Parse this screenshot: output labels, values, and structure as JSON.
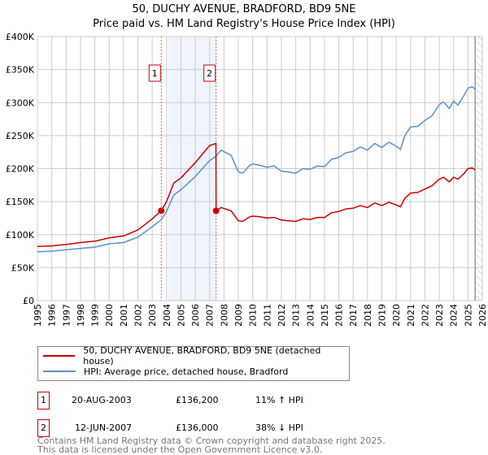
{
  "title": "50, DUCHY AVENUE, BRADFORD, BD9 5NE",
  "subtitle": "Price paid vs. HM Land Registry's House Price Index (HPI)",
  "legend": {
    "property": "50, DUCHY AVENUE, BRADFORD, BD9 5NE (detached house)",
    "hpi": "HPI: Average price, detached house, Bradford"
  },
  "transactions": [
    {
      "num": "1",
      "date": "20-AUG-2003",
      "price": "£136,200",
      "hpi": "11% ↑ HPI"
    },
    {
      "num": "2",
      "date": "12-JUN-2007",
      "price": "£136,000",
      "hpi": "38% ↓ HPI"
    }
  ],
  "footer": [
    "Contains HM Land Registry data © Crown copyright and database right 2025.",
    "This data is licensed under the Open Government Licence v3.0."
  ],
  "colors": {
    "property": "#cc0000",
    "hpi": "#5b8fd4",
    "shade": "#eef3fc"
  },
  "chart_data": {
    "type": "line",
    "title": "50, DUCHY AVENUE, BRADFORD, BD9 5NE",
    "xlim": [
      1995,
      2026
    ],
    "ylim": [
      0,
      400000
    ],
    "xticks": [
      1995,
      1996,
      1997,
      1998,
      1999,
      2000,
      2001,
      2002,
      2003,
      2004,
      2005,
      2006,
      2007,
      2008,
      2009,
      2010,
      2011,
      2012,
      2013,
      2014,
      2015,
      2016,
      2017,
      2018,
      2019,
      2020,
      2021,
      2022,
      2023,
      2024,
      2025,
      2026
    ],
    "yticks": [
      {
        "v": 0,
        "label": "£0"
      },
      {
        "v": 50000,
        "label": "£50K"
      },
      {
        "v": 100000,
        "label": "£100K"
      },
      {
        "v": 150000,
        "label": "£150K"
      },
      {
        "v": 200000,
        "label": "£200K"
      },
      {
        "v": 250000,
        "label": "£250K"
      },
      {
        "v": 300000,
        "label": "£300K"
      },
      {
        "v": 350000,
        "label": "£350K"
      },
      {
        "v": 400000,
        "label": "£400K"
      }
    ],
    "grid": true,
    "shaded_range": [
      2004.1,
      2007.45
    ],
    "forecast_hatch_from": 2025.5,
    "markers": [
      {
        "label": "1",
        "x": 2003.63,
        "y": 136200
      },
      {
        "label": "2",
        "x": 2007.45,
        "y": 136000
      }
    ],
    "series": [
      {
        "name": "HPI: Average price, detached house, Bradford",
        "x": [
          1995,
          1996,
          1997,
          1998,
          1999,
          2000,
          2001,
          2002,
          2003,
          2003.63,
          2004,
          2004.5,
          2005,
          2006,
          2007,
          2007.45,
          2007.8,
          2008.5,
          2009,
          2009.3,
          2009.8,
          2010,
          2010.5,
          2011,
          2011.5,
          2012,
          2012.5,
          2013,
          2013.5,
          2014,
          2014.5,
          2015,
          2015.5,
          2016,
          2016.5,
          2017,
          2017.5,
          2018,
          2018.5,
          2019,
          2019.5,
          2020,
          2020.3,
          2020.6,
          2021,
          2021.5,
          2022,
          2022.5,
          2023,
          2023.3,
          2023.7,
          2024,
          2024.3,
          2024.7,
          2025,
          2025.3,
          2025.5
        ],
        "values": [
          74000,
          75000,
          77000,
          79000,
          81000,
          86000,
          88000,
          96000,
          112000,
          122700,
          135000,
          160000,
          168000,
          188000,
          212000,
          219000,
          228000,
          220000,
          195000,
          193000,
          205000,
          207000,
          205000,
          202000,
          204000,
          196000,
          195000,
          193000,
          200000,
          199000,
          204000,
          203000,
          214000,
          217000,
          224000,
          226000,
          233000,
          228000,
          238000,
          232000,
          240000,
          234000,
          229000,
          250000,
          263000,
          264000,
          273000,
          280000,
          297000,
          301000,
          291000,
          302000,
          296000,
          310000,
          322000,
          324000,
          320000
        ]
      },
      {
        "name": "50, DUCHY AVENUE, BRADFORD, BD9 5NE (detached house)",
        "x": [
          1995,
          1996,
          1997,
          1998,
          1999,
          2000,
          2001,
          2002,
          2003,
          2003.63,
          2004,
          2004.5,
          2005,
          2006,
          2007,
          2007.44,
          2007.45,
          2007.8,
          2008.5,
          2009,
          2009.3,
          2009.8,
          2010,
          2010.5,
          2011,
          2011.5,
          2012,
          2012.5,
          2013,
          2013.5,
          2014,
          2014.5,
          2015,
          2015.5,
          2016,
          2016.5,
          2017,
          2017.5,
          2018,
          2018.5,
          2019,
          2019.5,
          2020,
          2020.3,
          2020.6,
          2021,
          2021.5,
          2022,
          2022.5,
          2023,
          2023.3,
          2023.7,
          2024,
          2024.3,
          2024.7,
          2025,
          2025.3,
          2025.5
        ],
        "values": [
          82000,
          83000,
          85000,
          88000,
          90000,
          95000,
          98000,
          107000,
          124000,
          136200,
          150000,
          178000,
          186000,
          209000,
          235000,
          238000,
          136000,
          141000,
          136000,
          121000,
          120000,
          127000,
          128000,
          127000,
          125000,
          126000,
          122000,
          121000,
          120000,
          124000,
          123000,
          126000,
          126000,
          133000,
          135000,
          139000,
          140000,
          144000,
          141000,
          148000,
          144000,
          149000,
          145000,
          142000,
          155000,
          163000,
          164000,
          169000,
          174000,
          184000,
          187000,
          180000,
          187000,
          184000,
          192000,
          200000,
          201000,
          198000
        ]
      }
    ]
  }
}
